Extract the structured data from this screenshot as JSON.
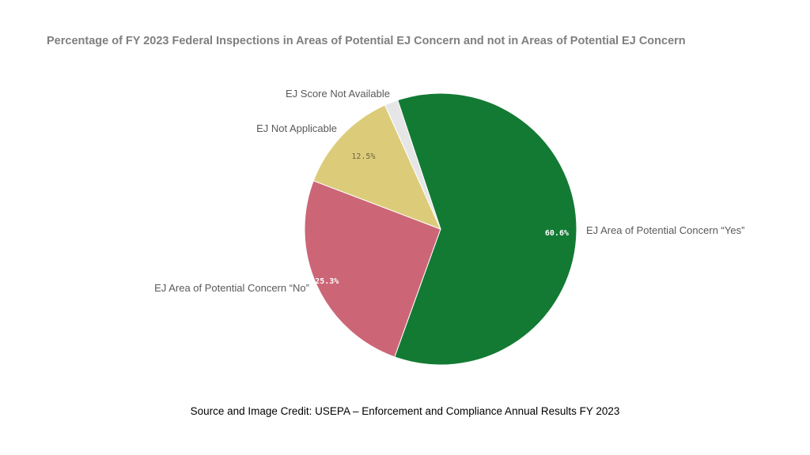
{
  "chart_data": {
    "type": "pie",
    "title": "Percentage of FY 2023 Federal Inspections in Areas of Potential EJ Concern and not in Areas of Potential EJ Concern",
    "slices": [
      {
        "name": "EJ Area of Potential Concern “Yes”",
        "value": 60.6,
        "label": "60.6%",
        "color": "#137a34",
        "label_color": "#ffffff"
      },
      {
        "name": "EJ Area of Potential Concern “No”",
        "value": 25.3,
        "label": "25.3%",
        "color": "#cc6677",
        "label_color": "#ffffff"
      },
      {
        "name": "EJ Not Applicable",
        "value": 12.5,
        "label": "12.5%",
        "color": "#dccc7a",
        "label_color": "#6b6440"
      },
      {
        "name": "EJ Score Not Available",
        "value": 1.6,
        "label": "",
        "color": "#e6e6e6",
        "label_color": "#595959"
      }
    ],
    "start_angle_deg": -18.4,
    "direction": "clockwise"
  },
  "credit": "Source and Image Credit: USEPA – Enforcement and Compliance Annual Results FY 2023"
}
